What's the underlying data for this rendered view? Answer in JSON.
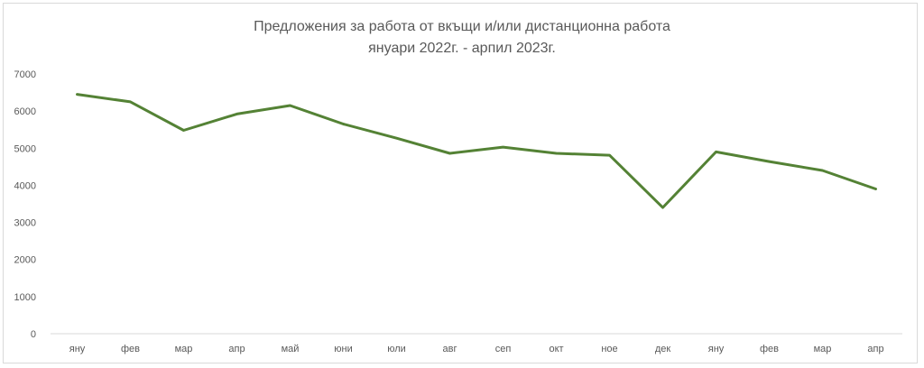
{
  "chart_data": {
    "type": "line",
    "title": "Предложения за работа от вкъщи и/или дистанционна работа",
    "subtitle": "януари 2022г. - арпил 2023г.",
    "categories": [
      "яну",
      "фев",
      "мар",
      "апр",
      "май",
      "юни",
      "юли",
      "авг",
      "сеп",
      "окт",
      "ное",
      "дек",
      "яну",
      "фев",
      "мар",
      "апр"
    ],
    "series": [
      {
        "values": [
          6450,
          6250,
          5480,
          5920,
          6150,
          5650,
          5270,
          4860,
          5030,
          4860,
          4810,
          3400,
          4900,
          4640,
          4400,
          3900
        ]
      }
    ],
    "ylim": [
      0,
      7000
    ],
    "yticks": [
      0,
      1000,
      2000,
      3000,
      4000,
      5000,
      6000,
      7000
    ],
    "grid": false,
    "legend": "none",
    "line_color": "#548235"
  }
}
